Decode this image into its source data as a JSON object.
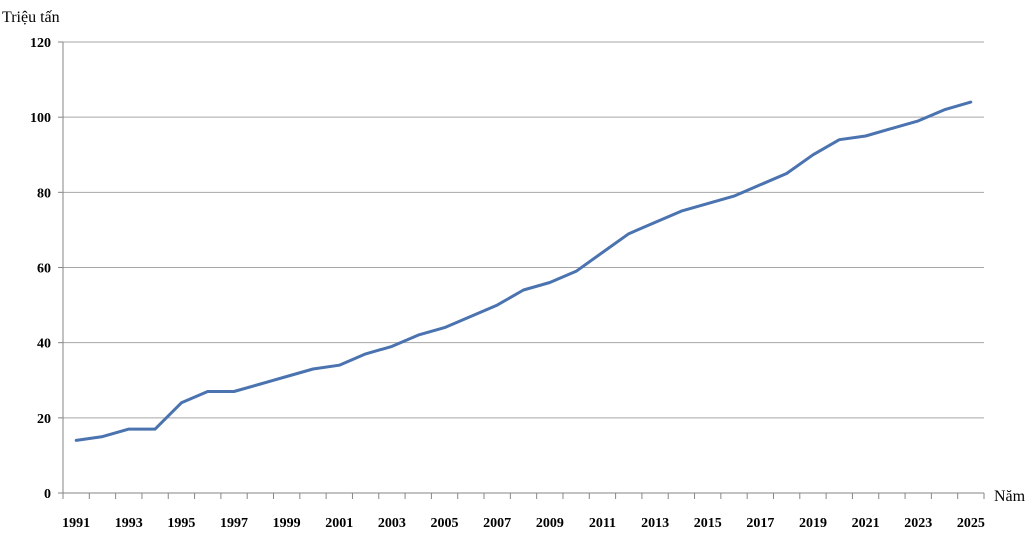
{
  "chart_data": {
    "type": "line",
    "ylabel": "Triệu tấn",
    "xlabel": "Năm",
    "ylim": [
      0,
      120
    ],
    "yticks": [
      0,
      20,
      40,
      60,
      80,
      100,
      120
    ],
    "xticks": [
      1991,
      1993,
      1995,
      1997,
      1999,
      2001,
      2003,
      2005,
      2007,
      2009,
      2011,
      2013,
      2015,
      2017,
      2019,
      2021,
      2023,
      2025
    ],
    "grid": true,
    "line_color": "#4a73b0",
    "x": [
      1991,
      1992,
      1993,
      1994,
      1995,
      1996,
      1997,
      1998,
      1999,
      2000,
      2001,
      2002,
      2003,
      2004,
      2005,
      2006,
      2007,
      2008,
      2009,
      2010,
      2011,
      2012,
      2013,
      2014,
      2015,
      2016,
      2017,
      2018,
      2019,
      2020,
      2021,
      2022,
      2023,
      2024,
      2025
    ],
    "series": [
      {
        "values": [
          14,
          15,
          17,
          17,
          24,
          27,
          27,
          29,
          31,
          33,
          34,
          37,
          39,
          42,
          44,
          47,
          50,
          54,
          56,
          59,
          64,
          69,
          72,
          75,
          77,
          79,
          82,
          85,
          90,
          94,
          95,
          97,
          99,
          102,
          104
        ]
      }
    ]
  }
}
